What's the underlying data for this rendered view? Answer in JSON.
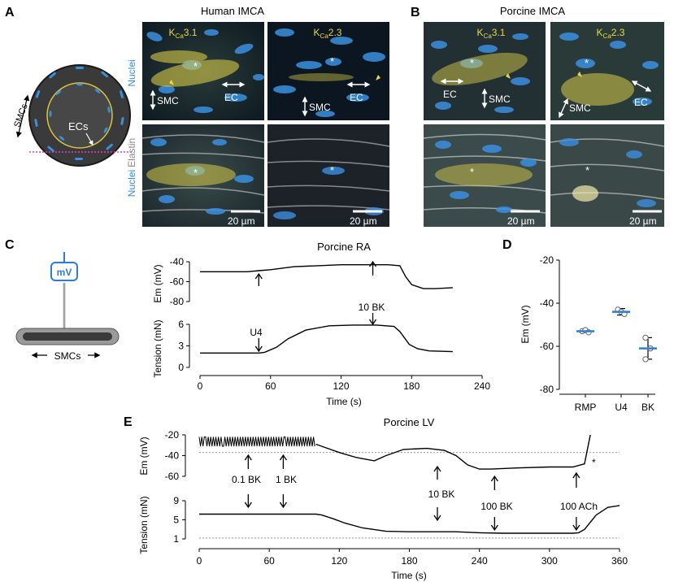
{
  "panels": {
    "A": {
      "letter": "A",
      "title": "Human IMCA",
      "col1_main": "K",
      "col1_sub": "Ca",
      "col1_tail": "3.1",
      "col2_main": "K",
      "col2_sub": "Ca",
      "col2_tail": "2.3",
      "row1_label": "Nuclei",
      "row2_label_a": "Nuclei",
      "row2_label_b": "Elastin",
      "smc": "SMC",
      "ec": "EC",
      "star": "*",
      "scale_bar": "20 µm",
      "schematic_smcs": "SMCs",
      "schematic_ecs": "ECs"
    },
    "B": {
      "letter": "B",
      "title": "Porcine IMCA",
      "col1_main": "K",
      "col1_sub": "Ca",
      "col1_tail": "3.1",
      "col2_main": "K",
      "col2_sub": "Ca",
      "col2_tail": "2.3",
      "smc": "SMC",
      "ec": "EC",
      "star": "*",
      "scale_bar": "20 µm"
    },
    "C": {
      "letter": "C",
      "title": "Porcine RA",
      "probe_label": "mV",
      "smcs": "SMCs",
      "arrow_em_label": "U4",
      "arrow_bk_label": "10 BK",
      "x_ticks": [
        "0",
        "60",
        "120",
        "180",
        "240"
      ],
      "x_label": "Time (s)",
      "em_ticks": [
        "-40",
        "-60",
        "-80"
      ],
      "em_label": "Em (mV)",
      "tension_ticks": [
        "6",
        "3",
        "0"
      ],
      "tension_label": "Tension (mN)"
    },
    "D": {
      "letter": "D",
      "y_label": "Em (mV)",
      "y_ticks": [
        "-20",
        "-40",
        "-60",
        "-80"
      ],
      "categories": [
        "RMP",
        "U4",
        "BK"
      ]
    },
    "E": {
      "letter": "E",
      "title": "Porcine LV",
      "em_ticks": [
        "-20",
        "-40",
        "-60"
      ],
      "em_label": "Em (mV)",
      "tension_ticks": [
        "9",
        "5",
        "1"
      ],
      "tension_label": "Tension (mN)",
      "x_ticks": [
        "0",
        "60",
        "120",
        "180",
        "240",
        "300",
        "360"
      ],
      "x_label": "Time (s)",
      "lbl_01bk": "0.1 BK",
      "lbl_1bk": "1 BK",
      "lbl_10bk": "10 BK",
      "lbl_100bk": "100 BK",
      "lbl_100ach": "100 ACh",
      "star": "*"
    }
  },
  "colors": {
    "nuclei_blue": "#3b8fe0",
    "kca_yellow": "#e8d84a",
    "elastin_gray": "#bfbfbf",
    "mean_line_blue": "#2a7fd4",
    "schematic_dark": "#3a3a3a",
    "dotted_magenta": "#e03ad0"
  },
  "chart_data": [
    {
      "type": "line",
      "panel": "C",
      "series": [
        {
          "quantity": "Em (mV)",
          "x": [
            0,
            20,
            40,
            50,
            60,
            80,
            100,
            120,
            140,
            160,
            170,
            175,
            180,
            190,
            200,
            215
          ],
          "y": [
            -50,
            -50,
            -50,
            -49,
            -48,
            -45,
            -44,
            -43,
            -43,
            -43,
            -44,
            -55,
            -63,
            -67,
            -67,
            -66
          ]
        },
        {
          "quantity": "Tension (mN)",
          "x": [
            0,
            20,
            40,
            50,
            55,
            65,
            75,
            90,
            110,
            130,
            150,
            165,
            170,
            178,
            185,
            195,
            215
          ],
          "y": [
            2,
            2,
            2,
            2,
            2.1,
            2.8,
            4.0,
            5.2,
            5.8,
            5.9,
            5.9,
            5.7,
            5.0,
            3.2,
            2.6,
            2.3,
            2.2
          ]
        }
      ],
      "events": [
        {
          "label": "U4",
          "x": 50
        },
        {
          "label": "10 BK",
          "x": 147
        }
      ],
      "xlabel": "Time (s)",
      "xlim": [
        0,
        240
      ],
      "em_ylim": [
        -80,
        -40
      ],
      "tension_ylim": [
        0,
        6
      ]
    },
    {
      "type": "scatter",
      "panel": "D",
      "categories": [
        "RMP",
        "U4",
        "BK"
      ],
      "points": [
        [
          -53,
          -52.5,
          -53.5
        ],
        [
          -43,
          -44,
          -45
        ],
        [
          -56,
          -61,
          -66
        ]
      ],
      "mean": [
        -53,
        -44,
        -61
      ],
      "sem": [
        0.5,
        1.5,
        5
      ],
      "ylabel": "Em (mV)",
      "ylim": [
        -80,
        -20
      ]
    },
    {
      "type": "line",
      "panel": "E",
      "series": [
        {
          "quantity": "Em (mV)",
          "x": [
            0,
            20,
            40,
            60,
            80,
            100,
            110,
            120,
            135,
            150,
            160,
            175,
            195,
            210,
            220,
            230,
            240,
            250,
            270,
            300,
            320,
            330,
            335
          ],
          "y": [
            -28,
            -28,
            -28,
            -28,
            -28,
            -29,
            -33,
            -37,
            -42,
            -45,
            -40,
            -34,
            -33,
            -35,
            -40,
            -49,
            -53,
            -53,
            -52,
            -51,
            -51,
            -48,
            -20
          ]
        },
        {
          "quantity": "Tension (mN)",
          "x": [
            0,
            40,
            80,
            100,
            105,
            115,
            125,
            140,
            160,
            180,
            200,
            220,
            240,
            260,
            300,
            320,
            325,
            330,
            340,
            350,
            360
          ],
          "y": [
            6.2,
            6.2,
            6.2,
            6.2,
            6.0,
            5.2,
            4.3,
            3.3,
            2.6,
            2.5,
            2.5,
            2.5,
            2.3,
            2.2,
            2.2,
            2.2,
            2.3,
            3.0,
            6.0,
            7.6,
            8.0
          ]
        }
      ],
      "events": [
        {
          "label": "0.1 BK",
          "x": 42
        },
        {
          "label": "1 BK",
          "x": 72
        },
        {
          "label": "10 BK",
          "x": 204
        },
        {
          "label": "100 BK",
          "x": 253
        },
        {
          "label": "100 ACh",
          "x": 323
        }
      ],
      "xlabel": "Time (s)",
      "xlim": [
        0,
        360
      ],
      "em_ylim": [
        -60,
        -20
      ],
      "tension_ylim": [
        1,
        9
      ]
    }
  ]
}
